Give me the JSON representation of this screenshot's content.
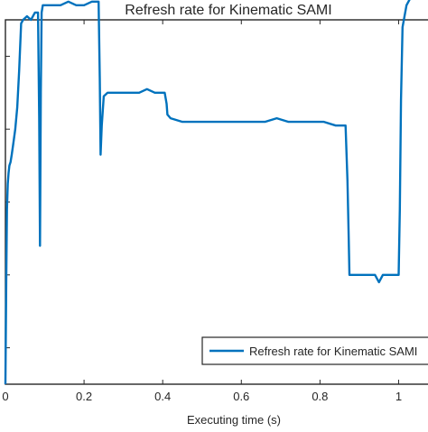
{
  "chart_data": {
    "type": "line",
    "title": "Refresh rate for Kinematic SAMI",
    "xlabel": "Executing time (s)",
    "ylabel": "",
    "xlim": [
      0,
      1.1
    ],
    "ylim": [
      0,
      1
    ],
    "xticks": [
      0,
      0.2,
      0.4,
      0.6,
      0.8,
      1
    ],
    "xtick_labels": [
      "0",
      "0.2",
      "0.4",
      "0.6",
      "0.8",
      "1"
    ],
    "yticks": [
      0.1,
      0.3,
      0.5,
      0.7,
      0.9
    ],
    "grid": false,
    "legend_position": "bottom-right",
    "series": [
      {
        "name": "Refresh rate for Kinematic SAMI",
        "color": "#0072bd",
        "x": [
          0,
          0.002,
          0.004,
          0.006,
          0.008,
          0.01,
          0.013,
          0.016,
          0.02,
          0.025,
          0.03,
          0.035,
          0.04,
          0.045,
          0.055,
          0.065,
          0.075,
          0.083,
          0.086,
          0.088,
          0.09,
          0.092,
          0.095,
          0.1,
          0.11,
          0.12,
          0.14,
          0.16,
          0.18,
          0.2,
          0.22,
          0.237,
          0.24,
          0.242,
          0.245,
          0.25,
          0.26,
          0.28,
          0.3,
          0.32,
          0.34,
          0.36,
          0.38,
          0.4,
          0.405,
          0.41,
          0.412,
          0.42,
          0.45,
          0.48,
          0.51,
          0.54,
          0.57,
          0.6,
          0.63,
          0.66,
          0.69,
          0.72,
          0.75,
          0.78,
          0.81,
          0.84,
          0.865,
          0.87,
          0.873,
          0.875,
          0.88,
          0.9,
          0.92,
          0.94,
          0.95,
          0.96,
          0.98,
          1.0,
          1.003,
          1.006,
          1.01,
          1.02,
          1.04,
          1.06,
          1.08,
          1.1
        ],
        "y": [
          0.0,
          0.28,
          0.48,
          0.55,
          0.58,
          0.6,
          0.61,
          0.63,
          0.66,
          0.7,
          0.76,
          0.86,
          0.99,
          1.0,
          1.01,
          1.0,
          1.02,
          1.02,
          0.73,
          0.38,
          0.8,
          1.02,
          1.04,
          1.04,
          1.04,
          1.04,
          1.04,
          1.05,
          1.04,
          1.04,
          1.05,
          1.05,
          0.84,
          0.63,
          0.71,
          0.79,
          0.8,
          0.8,
          0.8,
          0.8,
          0.8,
          0.81,
          0.8,
          0.8,
          0.8,
          0.77,
          0.74,
          0.73,
          0.72,
          0.72,
          0.72,
          0.72,
          0.72,
          0.72,
          0.72,
          0.72,
          0.73,
          0.72,
          0.72,
          0.72,
          0.72,
          0.71,
          0.71,
          0.56,
          0.4,
          0.3,
          0.3,
          0.3,
          0.3,
          0.3,
          0.28,
          0.3,
          0.3,
          0.3,
          0.48,
          0.78,
          0.98,
          1.04,
          1.08,
          1.09,
          1.1,
          1.09
        ]
      }
    ]
  }
}
